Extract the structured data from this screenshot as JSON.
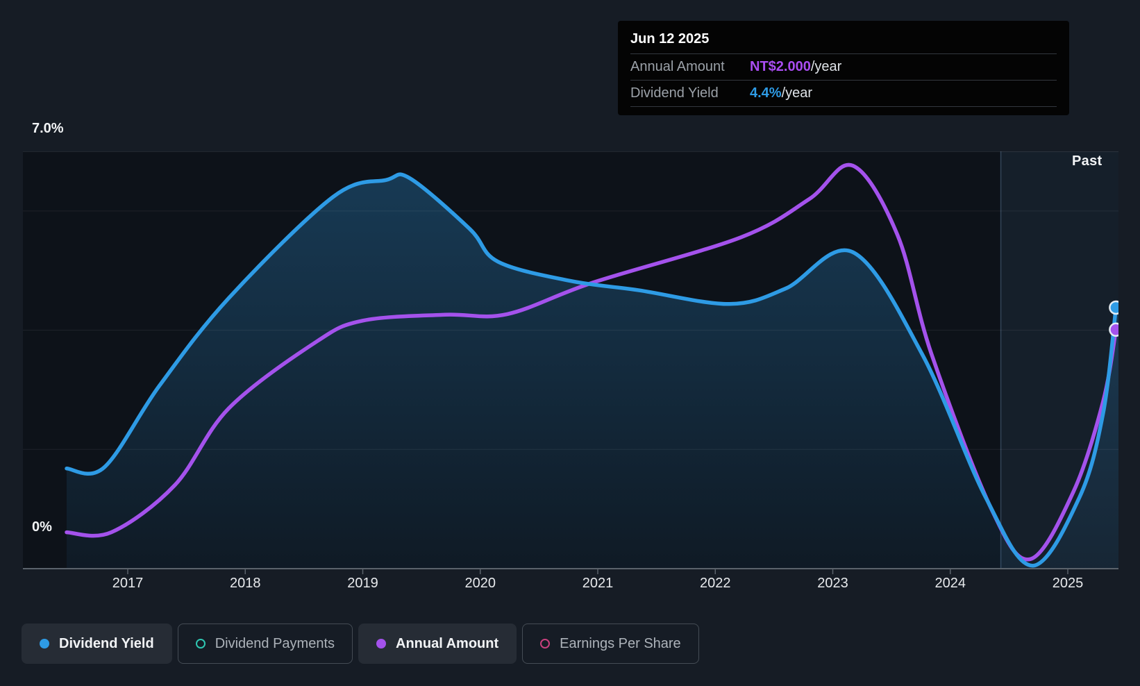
{
  "page": {
    "background": "#161C25"
  },
  "tooltip": {
    "date": "Jun 12 2025",
    "rows": [
      {
        "label": "Annual Amount",
        "value": "NT$2.000",
        "suffix": "/year",
        "value_color": "#A94DF1"
      },
      {
        "label": "Dividend Yield",
        "value": "4.4%",
        "suffix": "/year",
        "value_color": "#2E9BE5"
      }
    ]
  },
  "chart": {
    "past_label": "Past",
    "y_axis": {
      "top_label": "7.0%",
      "bottom_label": "0%"
    },
    "x_ticks": [
      "2017",
      "2018",
      "2019",
      "2020",
      "2021",
      "2022",
      "2023",
      "2024",
      "2025"
    ]
  },
  "legend": [
    {
      "label": "Dividend Yield",
      "color": "#2E9BE5",
      "marker": "filled",
      "active": true
    },
    {
      "label": "Dividend Payments",
      "color": "#2FC7B2",
      "marker": "ring",
      "active": false
    },
    {
      "label": "Annual Amount",
      "color": "#A452EC",
      "marker": "filled",
      "active": true
    },
    {
      "label": "Earnings Per Share",
      "color": "#C9407E",
      "marker": "ring",
      "active": false
    }
  ],
  "chart_data": {
    "type": "line",
    "x_axis": {
      "unit": "year",
      "range": [
        2016.11,
        2025.43
      ],
      "ticks": [
        2017,
        2018,
        2019,
        2020,
        2021,
        2022,
        2023,
        2024,
        2025
      ]
    },
    "y_axis": {
      "unit": "%",
      "range": [
        0,
        7
      ],
      "gridline_values": [
        2,
        4,
        6
      ],
      "top_line_value": 7,
      "labeled_values": [
        "7.0%",
        "0%"
      ]
    },
    "past_region_start_year": 2024.43,
    "series": [
      {
        "name": "Dividend Yield",
        "color": "#2E9BE5",
        "style": "line+area",
        "unit": "%",
        "points": [
          [
            2016.48,
            1.68
          ],
          [
            2016.8,
            1.7
          ],
          [
            2017.27,
            3.07
          ],
          [
            2017.86,
            4.54
          ],
          [
            2018.75,
            6.24
          ],
          [
            2019.2,
            6.52
          ],
          [
            2019.4,
            6.55
          ],
          [
            2019.91,
            5.7
          ],
          [
            2020.15,
            5.15
          ],
          [
            2020.76,
            4.83
          ],
          [
            2021.35,
            4.67
          ],
          [
            2022.12,
            4.44
          ],
          [
            2022.6,
            4.7
          ],
          [
            2023.17,
            5.31
          ],
          [
            2023.76,
            3.6
          ],
          [
            2024.3,
            1.2
          ],
          [
            2024.7,
            0.05
          ],
          [
            2025.1,
            1.2
          ],
          [
            2025.3,
            2.6
          ],
          [
            2025.41,
            4.38
          ]
        ]
      },
      {
        "name": "Annual Amount",
        "color": "#A452EC",
        "style": "line",
        "unit": "plotted against hidden NT$ axis; shown here in left-axis visual units, final value = NT$2.000/year",
        "points": [
          [
            2016.48,
            0.61
          ],
          [
            2016.86,
            0.61
          ],
          [
            2017.4,
            1.4
          ],
          [
            2017.86,
            2.69
          ],
          [
            2018.6,
            3.8
          ],
          [
            2019.0,
            4.16
          ],
          [
            2019.7,
            4.26
          ],
          [
            2020.23,
            4.27
          ],
          [
            2020.96,
            4.8
          ],
          [
            2022.22,
            5.56
          ],
          [
            2022.8,
            6.2
          ],
          [
            2023.17,
            6.76
          ],
          [
            2023.55,
            5.6
          ],
          [
            2023.84,
            3.6
          ],
          [
            2024.35,
            1.0
          ],
          [
            2024.68,
            0.16
          ],
          [
            2025.05,
            1.3
          ],
          [
            2025.3,
            2.8
          ],
          [
            2025.41,
            4.01
          ]
        ]
      }
    ],
    "end_markers": [
      {
        "series": "Dividend Yield",
        "x": 2025.41,
        "y": 4.38
      },
      {
        "series": "Annual Amount",
        "x": 2025.41,
        "y": 4.01
      }
    ]
  }
}
